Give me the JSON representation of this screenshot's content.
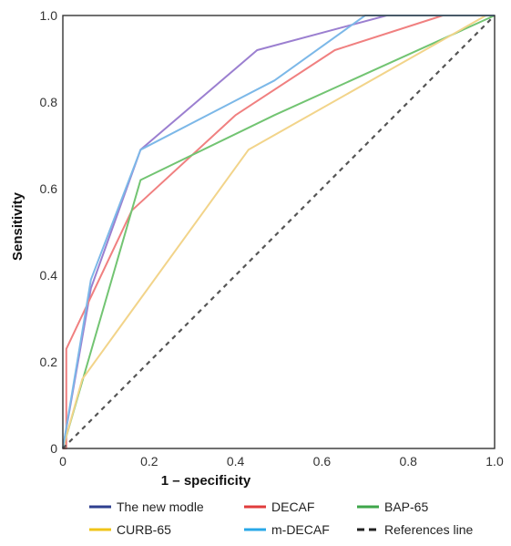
{
  "chart_data": {
    "type": "line",
    "xlabel": "1 – specificity",
    "ylabel": "Sensitivity",
    "xlim": [
      0,
      1
    ],
    "ylim": [
      0,
      1
    ],
    "x_ticks": [
      "0",
      "0.2",
      "0.4",
      "0.6",
      "0.8",
      "1.0"
    ],
    "y_ticks": [
      "0",
      "0.2",
      "0.4",
      "0.6",
      "0.8",
      "1.0"
    ],
    "grid": false,
    "legend_position": "bottom",
    "series": [
      {
        "name": "The new modle",
        "color": "#9b7fd0",
        "legend_color": "#2e3f8f",
        "dash": "none",
        "x": [
          0,
          0.065,
          0.18,
          0.45,
          0.75,
          1.0
        ],
        "y": [
          0,
          0.37,
          0.69,
          0.92,
          1.0,
          1.0
        ]
      },
      {
        "name": "DECAF",
        "color": "#f08080",
        "legend_color": "#e03c3c",
        "dash": "none",
        "x": [
          0,
          0.008,
          0.008,
          0.16,
          0.4,
          0.63,
          0.88,
          1.0
        ],
        "y": [
          0,
          0.0,
          0.23,
          0.55,
          0.77,
          0.92,
          1.0,
          1.0
        ]
      },
      {
        "name": "BAP-65",
        "color": "#72c472",
        "legend_color": "#3ea64a",
        "dash": "none",
        "x": [
          0,
          0.18,
          0.49,
          1.0
        ],
        "y": [
          0,
          0.62,
          0.77,
          1.0
        ]
      },
      {
        "name": "CURB-65",
        "color": "#f2d48a",
        "legend_color": "#f0c419",
        "dash": "none",
        "x": [
          0,
          0.045,
          0.43,
          0.98,
          1.0
        ],
        "y": [
          0,
          0.16,
          0.69,
          1.0,
          1.0
        ]
      },
      {
        "name": "m-DECAF",
        "color": "#7cb8e8",
        "legend_color": "#29a8e8",
        "dash": "none",
        "x": [
          0,
          0.065,
          0.18,
          0.49,
          0.7,
          1.0
        ],
        "y": [
          0,
          0.39,
          0.69,
          0.85,
          1.0,
          1.0
        ]
      },
      {
        "name": "References line",
        "color": "#555555",
        "legend_color": "#222222",
        "dash": "5,5",
        "x": [
          0,
          1.0
        ],
        "y": [
          0,
          1.0
        ]
      }
    ]
  }
}
